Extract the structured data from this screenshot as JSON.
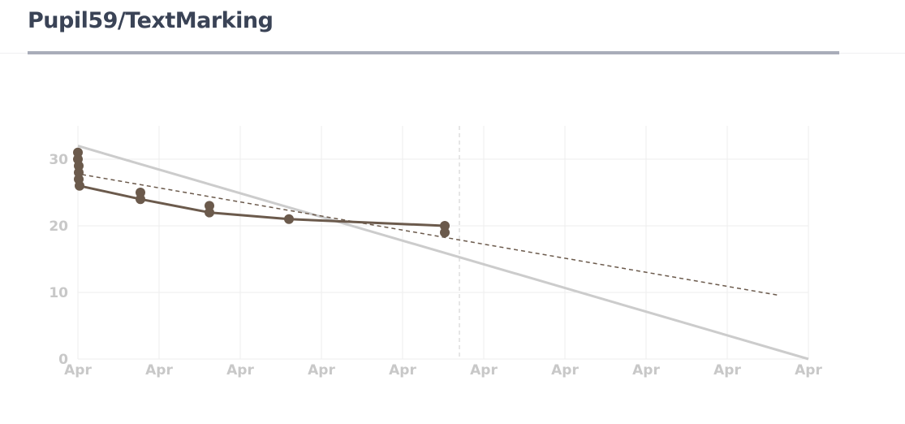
{
  "header": {
    "title": "Pupil59/TextMarking"
  },
  "colors": {
    "title": "#3a4356",
    "title_rule": "#a9adb9",
    "grid": "#eeeeee",
    "tick_label": "#c8c8c8",
    "actual_series": "#6b5a4c",
    "ideal_line": "#cccccc",
    "trend_line": "#6b5a4c",
    "marker_line": "#cccccc"
  },
  "chart_data": {
    "type": "line",
    "title": "",
    "xlabel": "",
    "ylabel": "",
    "xlim": [
      0,
      9
    ],
    "ylim": [
      0,
      35
    ],
    "y_ticks": [
      0,
      10,
      20,
      30
    ],
    "x_ticks": [
      0,
      1,
      2,
      3,
      4,
      5,
      6,
      7,
      8,
      9
    ],
    "x_tick_labels": [
      "Apr",
      "Apr",
      "Apr",
      "Apr",
      "Apr",
      "Apr",
      "Apr",
      "Apr",
      "Apr",
      "Apr"
    ],
    "grid": true,
    "series": [
      {
        "key": "actual",
        "style": "solid-markers",
        "points": [
          [
            0.0,
            31
          ],
          [
            0.0,
            30
          ],
          [
            0.01,
            29
          ],
          [
            0.01,
            28
          ],
          [
            0.01,
            27
          ],
          [
            0.02,
            26
          ],
          [
            0.77,
            25
          ],
          [
            0.77,
            24
          ],
          [
            1.62,
            23
          ],
          [
            1.62,
            22
          ],
          [
            2.6,
            21
          ],
          [
            4.52,
            20
          ],
          [
            4.52,
            19
          ]
        ],
        "line": [
          [
            0.02,
            26
          ],
          [
            0.77,
            24
          ],
          [
            1.62,
            22
          ],
          [
            2.6,
            21
          ],
          [
            4.52,
            20
          ]
        ]
      },
      {
        "key": "ideal",
        "style": "solid",
        "points": [
          [
            0,
            32
          ],
          [
            9,
            0
          ]
        ]
      },
      {
        "key": "trend",
        "style": "dashed",
        "points": [
          [
            0.05,
            27.7
          ],
          [
            8.62,
            9.6
          ]
        ]
      }
    ],
    "vertical_marker": {
      "x": 4.7,
      "style": "dashed"
    }
  }
}
